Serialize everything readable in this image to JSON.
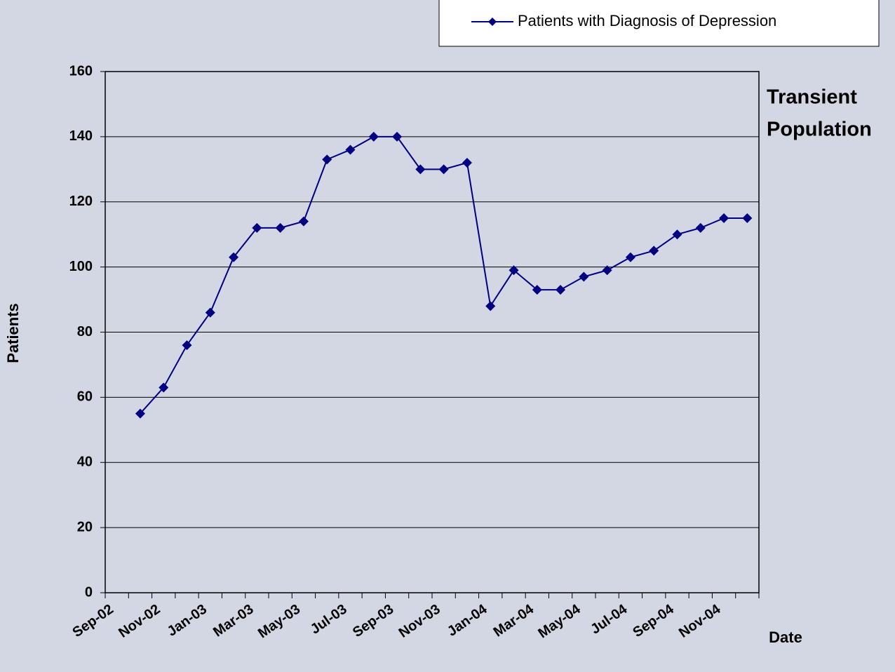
{
  "chart_data": {
    "type": "line",
    "categories": [
      "Sep-02",
      null,
      "Nov-02",
      null,
      "Jan-03",
      null,
      "Mar-03",
      null,
      "May-03",
      null,
      "Jul-03",
      null,
      "Sep-03",
      null,
      "Nov-03",
      null,
      "Jan-04",
      null,
      "Mar-04",
      null,
      "May-04",
      null,
      "Jul-04",
      null,
      "Sep-04",
      null,
      "Nov-04",
      null
    ],
    "series": [
      {
        "name": "Patients with Diagnosis of Depression",
        "color": "#000080",
        "values": [
          null,
          55,
          63,
          76,
          86,
          103,
          112,
          112,
          114,
          133,
          136,
          140,
          140,
          130,
          130,
          132,
          88,
          99,
          93,
          93,
          97,
          99,
          103,
          105,
          110,
          112,
          115,
          115
        ]
      }
    ],
    "ylim": [
      0,
      160
    ],
    "yticks": [
      0,
      20,
      40,
      60,
      80,
      100,
      120,
      140,
      160
    ],
    "ylabel": "Patients",
    "xlabel": "Date",
    "annotation_lines": [
      "Transient",
      "Population"
    ],
    "grid": true,
    "legend": "top-right"
  }
}
